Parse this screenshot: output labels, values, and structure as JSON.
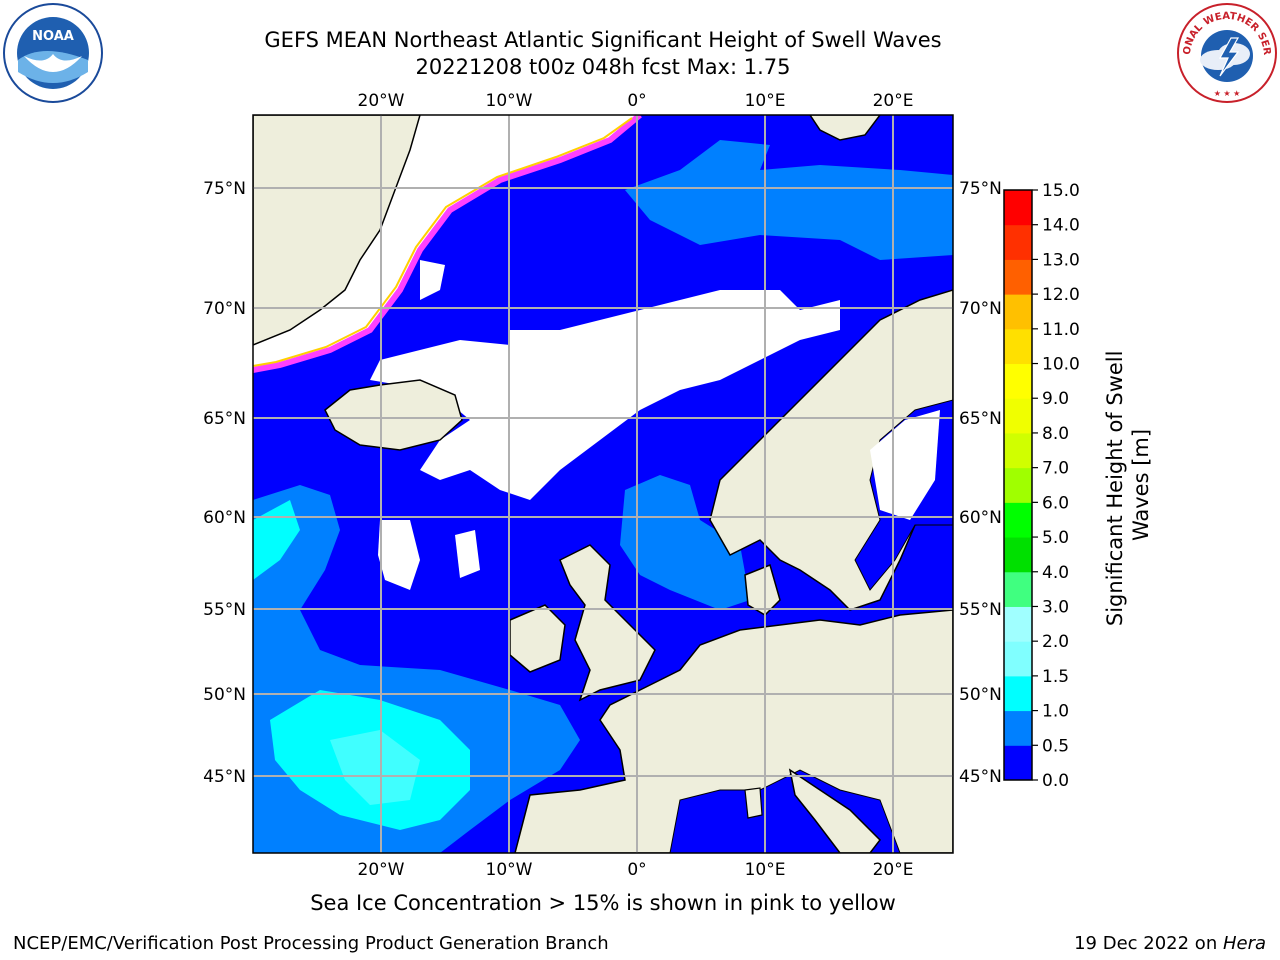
{
  "title": {
    "line1": "GEFS MEAN Northeast Atlantic Significant Height of Swell Waves",
    "line2": "20221208 t00z 048h fcst   Max: 1.75"
  },
  "map": {
    "lon_labels": [
      "20°W",
      "10°W",
      "0°",
      "10°E",
      "20°E"
    ],
    "lat_labels_left": [
      "75°N",
      "70°N",
      "65°N",
      "60°N",
      "55°N",
      "50°N",
      "45°N"
    ],
    "lat_labels_right": [
      "75°N",
      "70°N",
      "65°N",
      "60°N",
      "55°N",
      "50°N",
      "45°N"
    ],
    "colors": {
      "ocean_low": "#0000ff",
      "ocean_mid": "#0080ff",
      "ocean_high": "#00ffff",
      "ocean_top": "#40ffff",
      "land": "#eeeedc",
      "ice": "#ffffff",
      "ice_edge": "#ff40ff",
      "grid": "#b0b0b0"
    }
  },
  "colorbar": {
    "label": "Significant Height of Swell Waves [m]",
    "ticks": [
      "15.0",
      "14.0",
      "13.0",
      "12.0",
      "11.0",
      "10.0",
      "9.0",
      "8.0",
      "7.0",
      "6.0",
      "5.0",
      "4.0",
      "3.0",
      "2.0",
      "1.5",
      "1.0",
      "0.5",
      "0.0"
    ],
    "colors": [
      "#0000ff",
      "#0080ff",
      "#00ffff",
      "#40ffff",
      "#80ffff",
      "#a0ffff",
      "#40ff80",
      "#00e000",
      "#00ff00",
      "#40e000",
      "#a0ff00",
      "#d0ff00",
      "#f0ff00",
      "#ffff00",
      "#ffe000",
      "#ffc000",
      "#ff9000",
      "#ff6000",
      "#ff3000",
      "#ff0000"
    ]
  },
  "logos": {
    "nws_text": "NATIONAL WEATHER SERVICE",
    "noaa_text": "NOAA"
  },
  "footer": {
    "note": "Sea Ice Concentration > 15% is shown in pink to yellow",
    "credit": "NCEP/EMC/Verification Post Processing Product Generation Branch",
    "date": "19 Dec 2022 on ",
    "host": "Hera"
  }
}
